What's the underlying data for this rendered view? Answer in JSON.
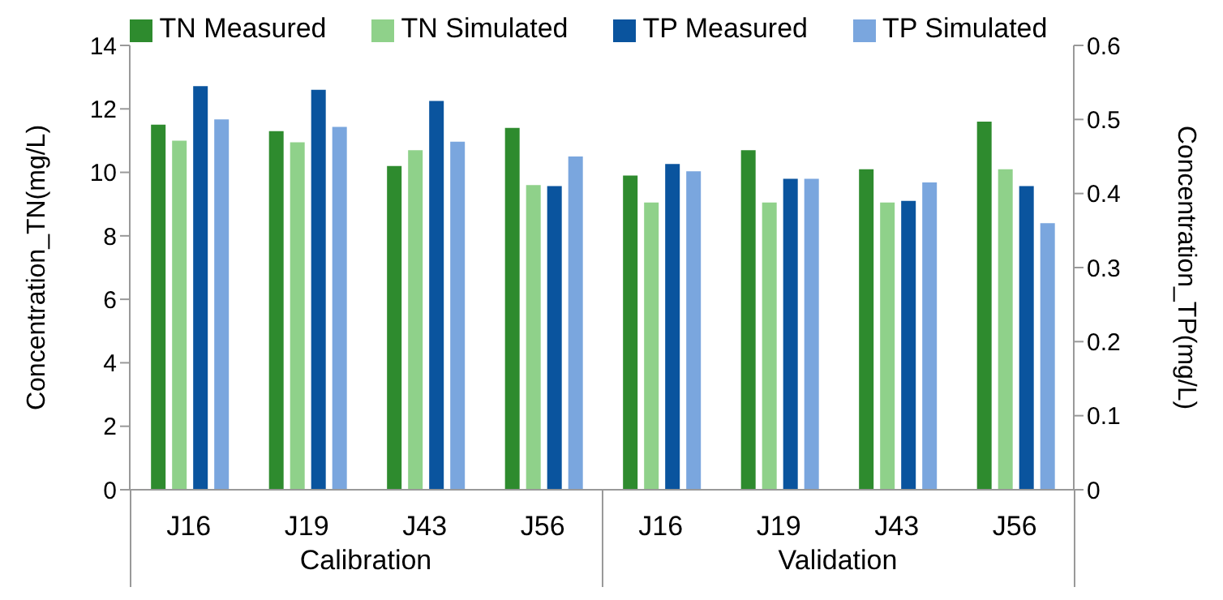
{
  "chart_data": {
    "type": "bar",
    "ylabel": "Concentration_TN(mg/L)",
    "y2label": "Concentration_TP(mg/L)",
    "categories": [
      "J16",
      "J19",
      "J43",
      "J56",
      "J16",
      "J19",
      "J43",
      "J56"
    ],
    "series": [
      {
        "name": "TN Measured",
        "color": "#2e8b2e",
        "values": [
          11.5,
          11.3,
          10.2,
          11.4,
          9.9,
          10.7,
          10.1,
          11.6
        ]
      },
      {
        "name": "TN Simulated",
        "color": "#8fd18a",
        "values": [
          11.0,
          10.95,
          10.7,
          9.6,
          9.05,
          9.05,
          9.05,
          10.1
        ]
      },
      {
        "name": "TP Measured",
        "color": "#0a549e",
        "axis": "y2",
        "values": [
          0.545,
          0.54,
          0.525,
          0.41,
          0.44,
          0.42,
          0.39,
          0.41
        ]
      },
      {
        "name": "TP Simulated",
        "color": "#7aa6de",
        "axis": "y2",
        "values": [
          0.5,
          0.49,
          0.47,
          0.45,
          0.43,
          0.42,
          0.415,
          0.36
        ]
      }
    ],
    "ylim": [
      0,
      14
    ],
    "yticks": [
      0,
      2,
      4,
      6,
      8,
      10,
      12,
      14
    ],
    "y2lim": [
      0,
      0.6
    ],
    "y2ticks": [
      0,
      0.1,
      0.2,
      0.3,
      0.4,
      0.5,
      0.6
    ],
    "legend": "top",
    "annotations": [
      "Calibration",
      "Validation"
    ]
  }
}
